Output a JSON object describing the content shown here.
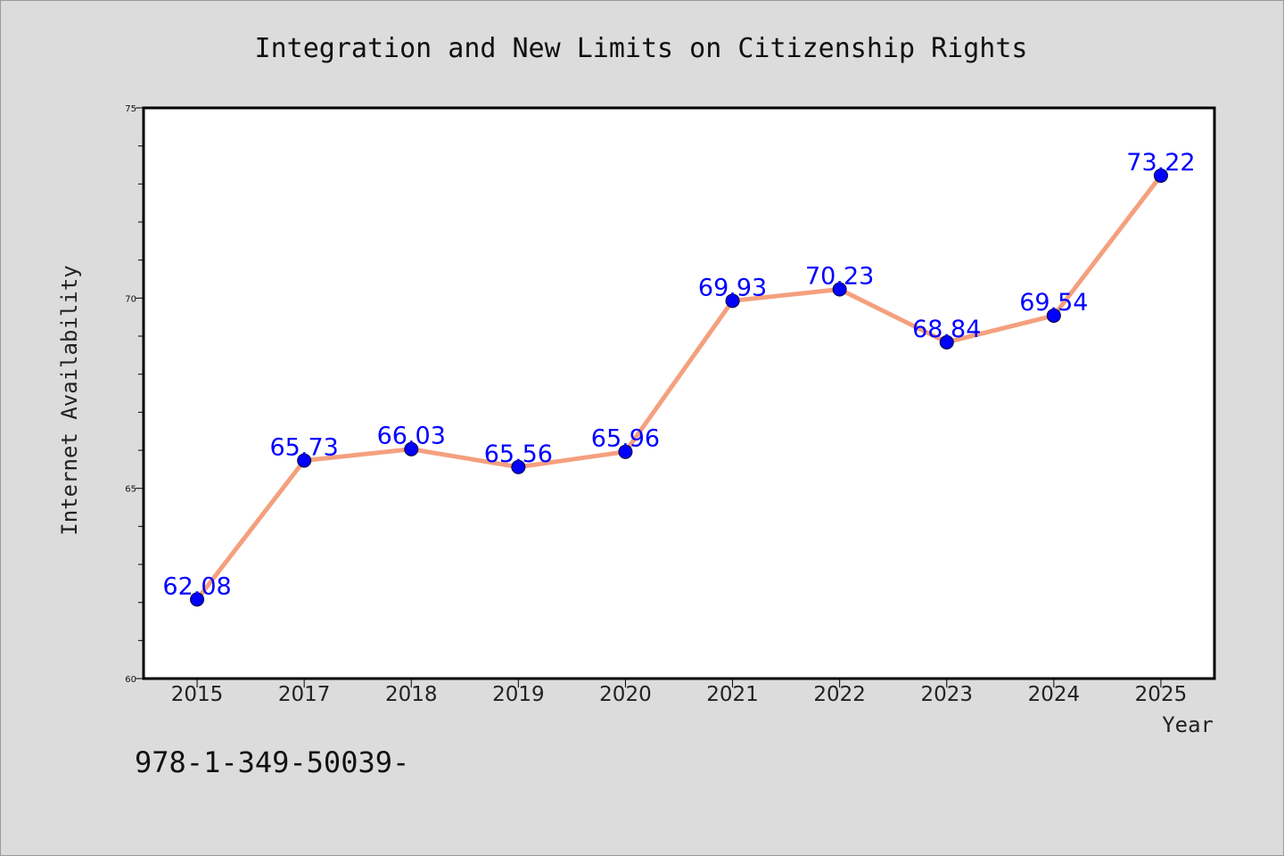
{
  "chart_data": {
    "type": "line",
    "title": "Integration and New Limits on Citizenship Rights",
    "xlabel": "Year",
    "ylabel": "Internet Availability",
    "categories": [
      "2015",
      "2017",
      "2018",
      "2019",
      "2020",
      "2021",
      "2022",
      "2023",
      "2024",
      "2025"
    ],
    "series": [
      {
        "values": [
          62.08,
          65.73,
          66.03,
          65.56,
          65.96,
          69.93,
          70.23,
          68.84,
          69.54,
          73.22
        ],
        "labels": [
          "62.08",
          "65.73",
          "66.03",
          "65.56",
          "65.96",
          "69.93",
          "70.23",
          "68.84",
          "69.54",
          "73.22"
        ],
        "line_color": "#f4a07e",
        "marker_color": "#0000ff",
        "label_color": "#0000ff"
      }
    ],
    "ylim": [
      60,
      75
    ],
    "yticks": [
      "60",
      "65",
      "70",
      "75"
    ],
    "ytick_values": [
      60,
      65,
      70,
      75
    ],
    "grid": false,
    "legend": "none"
  },
  "footer": {
    "code_text": "978-1-349-50039-"
  },
  "colors": {
    "background": "#dcdcdc",
    "plot_background": "#ffffff",
    "frame": "#000000"
  }
}
